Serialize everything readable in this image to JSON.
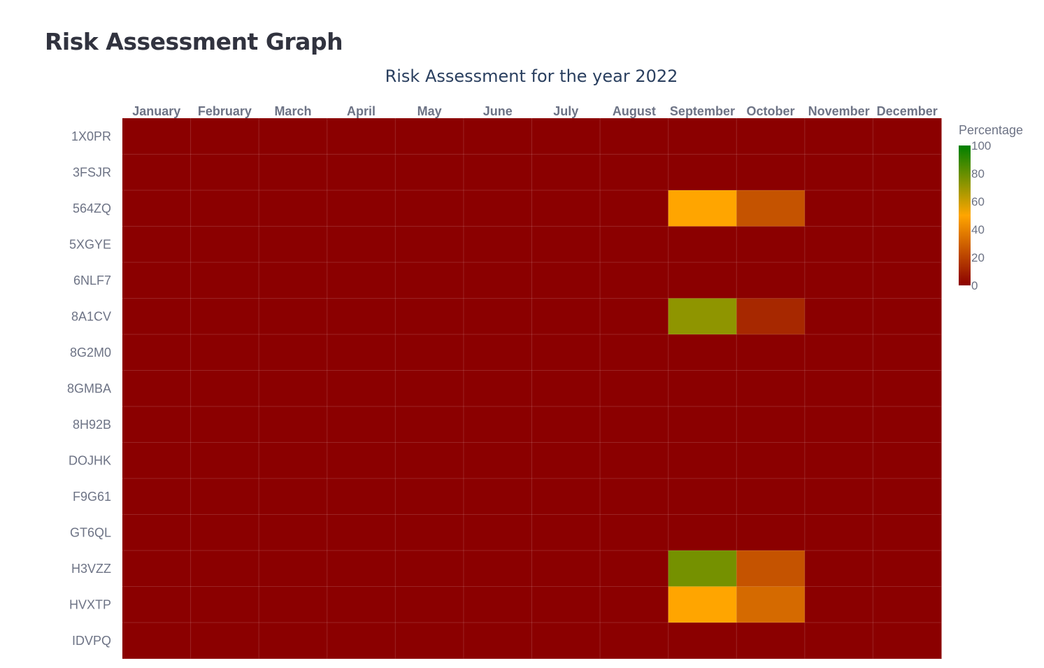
{
  "page": {
    "title": "Risk Assessment Graph"
  },
  "chart_data": {
    "type": "heatmap",
    "title": "Risk Assessment for the year 2022",
    "x": [
      "January",
      "February",
      "March",
      "April",
      "May",
      "June",
      "July",
      "August",
      "September",
      "October",
      "November",
      "December"
    ],
    "y": [
      "1X0PR",
      "3FSJR",
      "564ZQ",
      "5XGYE",
      "6NLF7",
      "8A1CV",
      "8G2M0",
      "8GMBA",
      "8H92B",
      "DOJHK",
      "F9G61",
      "GT6QL",
      "H3VZZ",
      "HVXTP",
      "IDVPQ"
    ],
    "z": [
      [
        0,
        0,
        0,
        0,
        0,
        0,
        0,
        0,
        0,
        0,
        0,
        0
      ],
      [
        0,
        0,
        0,
        0,
        0,
        0,
        0,
        0,
        0,
        0,
        0,
        0
      ],
      [
        0,
        0,
        0,
        0,
        0,
        0,
        0,
        0,
        50,
        25,
        0,
        0
      ],
      [
        0,
        0,
        0,
        0,
        0,
        0,
        0,
        0,
        0,
        0,
        0,
        0
      ],
      [
        0,
        0,
        0,
        0,
        0,
        0,
        0,
        0,
        0,
        0,
        0,
        0
      ],
      [
        0,
        0,
        0,
        0,
        0,
        0,
        0,
        0,
        72,
        12,
        0,
        0
      ],
      [
        0,
        0,
        0,
        0,
        0,
        0,
        0,
        0,
        0,
        0,
        0,
        0
      ],
      [
        0,
        0,
        0,
        0,
        0,
        0,
        0,
        0,
        0,
        0,
        0,
        0
      ],
      [
        0,
        0,
        0,
        0,
        0,
        0,
        0,
        0,
        0,
        0,
        0,
        0
      ],
      [
        0,
        0,
        0,
        0,
        0,
        0,
        0,
        0,
        0,
        0,
        0,
        0
      ],
      [
        0,
        0,
        0,
        0,
        0,
        0,
        0,
        0,
        0,
        0,
        0,
        0
      ],
      [
        0,
        0,
        0,
        0,
        0,
        0,
        0,
        0,
        0,
        0,
        0,
        0
      ],
      [
        0,
        0,
        0,
        0,
        0,
        0,
        0,
        0,
        77,
        25,
        0,
        0
      ],
      [
        0,
        0,
        0,
        0,
        0,
        0,
        0,
        0,
        50,
        32,
        0,
        0
      ],
      [
        0,
        0,
        0,
        0,
        0,
        0,
        0,
        0,
        0,
        0,
        0,
        0
      ]
    ],
    "colorbar": {
      "title": "Percentage",
      "range": [
        0,
        100
      ],
      "ticks": [
        0,
        20,
        40,
        60,
        80,
        100
      ],
      "colorscale": [
        [
          0,
          "#8b0000"
        ],
        [
          0.5,
          "#ffa500"
        ],
        [
          1,
          "#008000"
        ]
      ]
    },
    "grid": true,
    "x_axis_position": "top"
  }
}
